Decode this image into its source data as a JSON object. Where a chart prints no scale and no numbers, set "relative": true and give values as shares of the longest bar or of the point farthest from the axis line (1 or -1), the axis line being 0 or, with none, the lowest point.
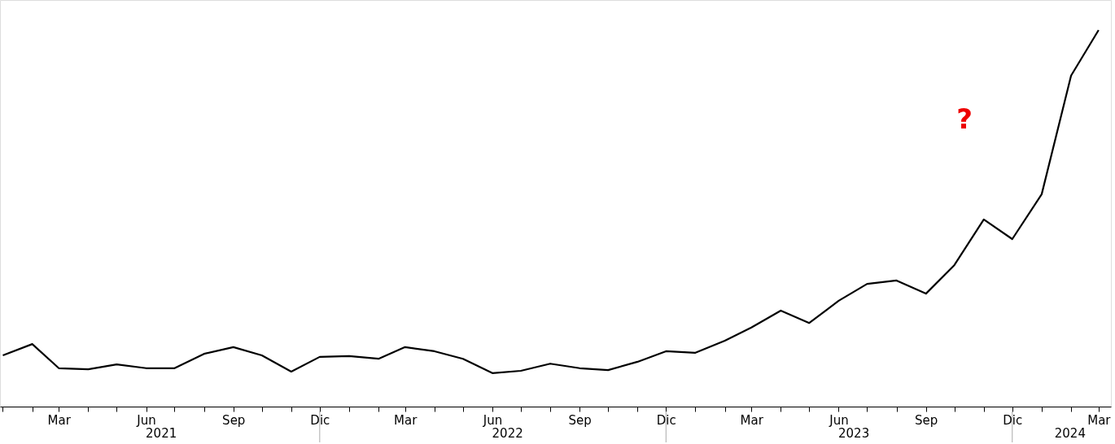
{
  "chart_data": {
    "type": "line",
    "relative": true,
    "x": [
      "2021-01",
      "2021-02",
      "2021-03",
      "2021-04",
      "2021-05",
      "2021-06",
      "2021-07",
      "2021-08",
      "2021-09",
      "2021-10",
      "2021-11",
      "2021-12",
      "2022-01",
      "2022-02",
      "2022-03",
      "2022-04",
      "2022-05",
      "2022-06",
      "2022-07",
      "2022-08",
      "2022-09",
      "2022-10",
      "2022-11",
      "2022-12",
      "2023-01",
      "2023-02",
      "2023-03",
      "2023-04",
      "2023-05",
      "2023-06",
      "2023-07",
      "2023-08",
      "2023-09",
      "2023-10",
      "2023-11",
      "2023-12",
      "2024-01",
      "2024-02",
      "2024-03"
    ],
    "series": [
      {
        "color": "#000000",
        "values": [
          0.136,
          0.166,
          0.102,
          0.099,
          0.112,
          0.102,
          0.102,
          0.14,
          0.158,
          0.136,
          0.093,
          0.132,
          0.134,
          0.127,
          0.158,
          0.147,
          0.127,
          0.089,
          0.095,
          0.114,
          0.102,
          0.097,
          0.119,
          0.147,
          0.143,
          0.175,
          0.21,
          0.255,
          0.222,
          0.281,
          0.326,
          0.335,
          0.3,
          0.376,
          0.497,
          0.445,
          0.564,
          0.879,
          1.0
        ]
      }
    ],
    "xlim": [
      "2020-12-29",
      "2024-03-14"
    ],
    "xticks": [
      {
        "value": "2021-01",
        "label": null
      },
      {
        "value": "2021-02",
        "label": null
      },
      {
        "value": "2021-03",
        "label": "Mar"
      },
      {
        "value": "2021-04",
        "label": null
      },
      {
        "value": "2021-05",
        "label": null
      },
      {
        "value": "2021-06",
        "label": "Jun"
      },
      {
        "value": "2021-07",
        "label": null
      },
      {
        "value": "2021-08",
        "label": null
      },
      {
        "value": "2021-09",
        "label": "Sep"
      },
      {
        "value": "2021-10",
        "label": null
      },
      {
        "value": "2021-11",
        "label": null
      },
      {
        "value": "2021-12",
        "label": "Dic"
      },
      {
        "value": "2022-01",
        "label": null
      },
      {
        "value": "2022-02",
        "label": null
      },
      {
        "value": "2022-03",
        "label": "Mar"
      },
      {
        "value": "2022-04",
        "label": null
      },
      {
        "value": "2022-05",
        "label": null
      },
      {
        "value": "2022-06",
        "label": "Jun"
      },
      {
        "value": "2022-07",
        "label": null
      },
      {
        "value": "2022-08",
        "label": null
      },
      {
        "value": "2022-09",
        "label": "Sep"
      },
      {
        "value": "2022-10",
        "label": null
      },
      {
        "value": "2022-11",
        "label": null
      },
      {
        "value": "2022-12",
        "label": "Dic"
      },
      {
        "value": "2023-01",
        "label": null
      },
      {
        "value": "2023-02",
        "label": null
      },
      {
        "value": "2023-03",
        "label": "Mar"
      },
      {
        "value": "2023-04",
        "label": null
      },
      {
        "value": "2023-05",
        "label": null
      },
      {
        "value": "2023-06",
        "label": "Jun"
      },
      {
        "value": "2023-07",
        "label": null
      },
      {
        "value": "2023-08",
        "label": null
      },
      {
        "value": "2023-09",
        "label": "Sep"
      },
      {
        "value": "2023-10",
        "label": null
      },
      {
        "value": "2023-11",
        "label": null
      },
      {
        "value": "2023-12",
        "label": "Dic"
      },
      {
        "value": "2024-01",
        "label": null
      },
      {
        "value": "2024-02",
        "label": null
      },
      {
        "value": "2024-03",
        "label": "Mar"
      }
    ],
    "annotations": [
      "2021",
      "2022",
      "2023",
      "2024",
      "?"
    ],
    "grid": false
  }
}
